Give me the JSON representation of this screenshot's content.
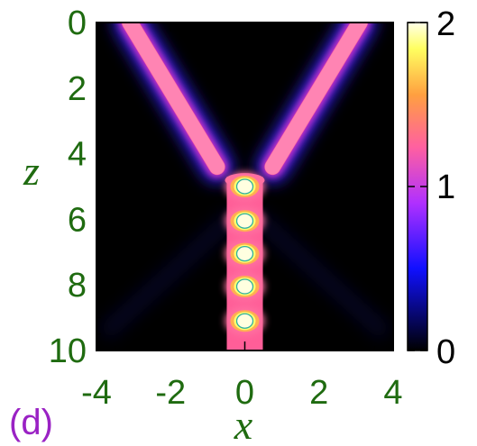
{
  "chart_data": {
    "type": "heatmap",
    "panel_label": "(d)",
    "xlabel": "x",
    "ylabel": "z",
    "xlim": [
      -4,
      4
    ],
    "ylim": [
      0,
      10
    ],
    "y_inverted": true,
    "x_ticks": [
      -4,
      -2,
      0,
      2,
      4
    ],
    "x_tick_labels": [
      "-4",
      "-2",
      "0",
      "2",
      "4"
    ],
    "y_ticks": [
      0,
      2,
      4,
      6,
      8,
      10
    ],
    "y_tick_labels": [
      "0",
      "2",
      "4",
      "6",
      "8",
      "10"
    ],
    "colorbar": {
      "range": [
        0,
        2
      ],
      "ticks": [
        0,
        1,
        2
      ],
      "tick_labels": [
        "0",
        "1",
        "2"
      ],
      "colors": [
        "#000000",
        "#1010ff",
        "#b030ff",
        "#ff60a0",
        "#ffa040",
        "#ffff60",
        "#ffffe8"
      ]
    },
    "beams": [
      {
        "description": "left incoming beam",
        "x_start": -3.1,
        "z_start": 0,
        "x_end": -0.75,
        "z_end": 4.4,
        "intensity": 1.5
      },
      {
        "description": "right incoming beam",
        "x_start": 3.1,
        "z_start": 0,
        "x_end": 0.75,
        "z_end": 4.4,
        "intensity": 1.5
      },
      {
        "description": "merged breather",
        "x_center": 0,
        "z_start": 4.7,
        "z_end": 10,
        "intensity": 1.7
      }
    ],
    "intensity_peaks_z": [
      5.0,
      6.05,
      7.05,
      8.05,
      9.1
    ],
    "peak_intensity": 2.0
  }
}
